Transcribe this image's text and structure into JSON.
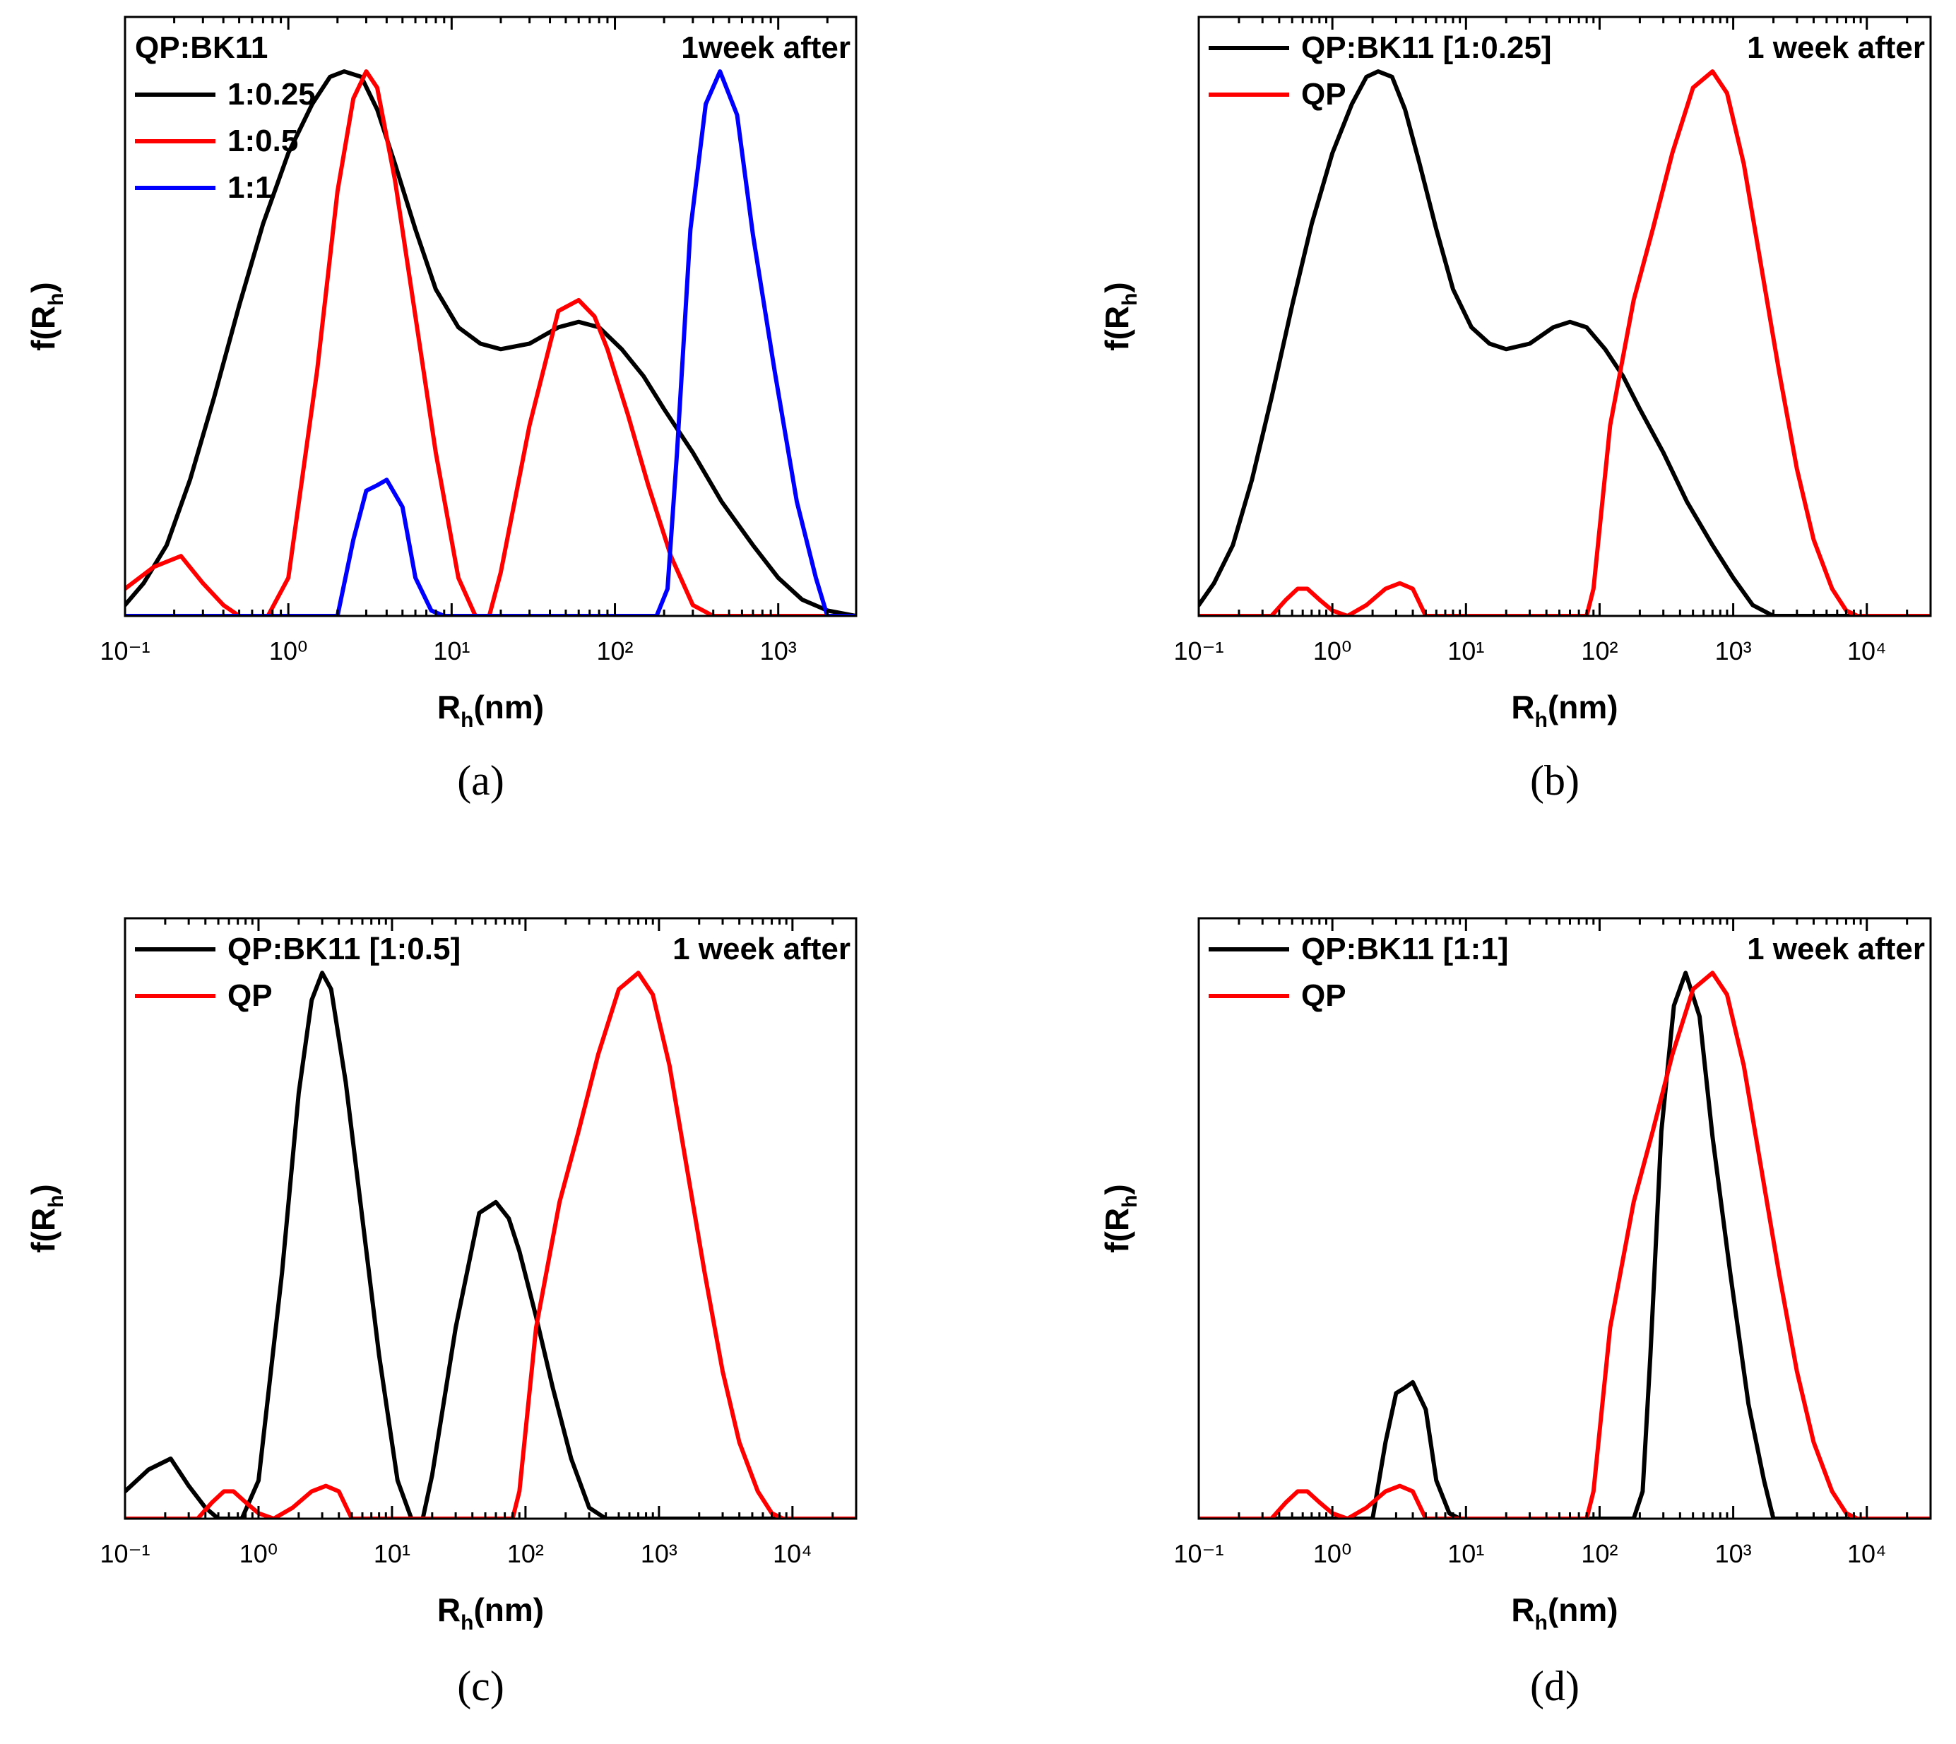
{
  "chart_data": [
    {
      "panel": "a",
      "caption": "(a)",
      "type": "line",
      "xscale": "log",
      "xlim": [
        0.1,
        3000
      ],
      "ylim": [
        0,
        1.1
      ],
      "xticks": [
        0.1,
        1,
        10,
        100,
        1000
      ],
      "xlabel": {
        "main": "R",
        "sub": "h",
        "rest": "(nm)"
      },
      "ylabel": {
        "main": "f(R",
        "sub": "h",
        "rest": ")"
      },
      "annotation": "1week after",
      "legend_title": "QP:BK11",
      "legend_position": "top-left",
      "series": [
        {
          "name": "1:0.25",
          "color": "#000000",
          "x": [
            0.1,
            0.13,
            0.18,
            0.25,
            0.35,
            0.5,
            0.7,
            1.0,
            1.4,
            1.8,
            2.2,
            2.8,
            3.5,
            4.5,
            6,
            8,
            11,
            15,
            20,
            30,
            45,
            60,
            80,
            110,
            150,
            200,
            300,
            450,
            700,
            1000,
            1400,
            2000,
            3000
          ],
          "y": [
            0.02,
            0.06,
            0.13,
            0.25,
            0.4,
            0.57,
            0.72,
            0.85,
            0.94,
            0.99,
            1.0,
            0.99,
            0.93,
            0.83,
            0.71,
            0.6,
            0.53,
            0.5,
            0.49,
            0.5,
            0.53,
            0.54,
            0.53,
            0.49,
            0.44,
            0.38,
            0.3,
            0.21,
            0.13,
            0.07,
            0.03,
            0.01,
            0.0
          ]
        },
        {
          "name": "1:0.5",
          "color": "#ff0000",
          "x": [
            0.1,
            0.15,
            0.22,
            0.3,
            0.4,
            0.5,
            0.6,
            0.75,
            1.0,
            1.5,
            2.0,
            2.5,
            3.0,
            3.5,
            4.5,
            6,
            8,
            11,
            14,
            17,
            20,
            30,
            45,
            60,
            75,
            90,
            120,
            160,
            220,
            300,
            400,
            3000
          ],
          "y": [
            0.05,
            0.09,
            0.11,
            0.06,
            0.02,
            0.0,
            0.0,
            0.0,
            0.07,
            0.45,
            0.78,
            0.95,
            1.0,
            0.97,
            0.8,
            0.55,
            0.3,
            0.07,
            0.0,
            0.0,
            0.08,
            0.35,
            0.56,
            0.58,
            0.55,
            0.49,
            0.37,
            0.24,
            0.11,
            0.02,
            0.0,
            0.0
          ]
        },
        {
          "name": "1:1",
          "color": "#0000ff",
          "x": [
            0.1,
            1.5,
            2.0,
            2.5,
            3.0,
            3.5,
            4.0,
            5.0,
            6.0,
            7.5,
            9.0,
            20,
            100,
            180,
            210,
            240,
            290,
            360,
            440,
            560,
            700,
            950,
            1300,
            1700,
            2000,
            3000
          ],
          "y": [
            0.0,
            0.0,
            0.0,
            0.14,
            0.23,
            0.24,
            0.25,
            0.2,
            0.07,
            0.01,
            0.0,
            0.0,
            0.0,
            0.0,
            0.05,
            0.3,
            0.71,
            0.94,
            1.0,
            0.92,
            0.7,
            0.45,
            0.21,
            0.07,
            0.0,
            0.0
          ]
        }
      ]
    },
    {
      "panel": "b",
      "caption": "(b)",
      "type": "line",
      "xscale": "log",
      "xlim": [
        0.1,
        30000
      ],
      "ylim": [
        0,
        1.1
      ],
      "xticks": [
        0.1,
        1,
        10,
        100,
        1000,
        10000
      ],
      "xlabel": {
        "main": "R",
        "sub": "h",
        "rest": "(nm)"
      },
      "ylabel": {
        "main": "f(R",
        "sub": "h",
        "rest": ")"
      },
      "annotation": "1 week after",
      "legend_title": "",
      "legend_position": "top-left",
      "series": [
        {
          "name": "QP:BK11 [1:0.25]",
          "color": "#000000",
          "x": [
            0.1,
            0.13,
            0.18,
            0.25,
            0.35,
            0.5,
            0.7,
            1.0,
            1.4,
            1.8,
            2.2,
            2.8,
            3.5,
            4.5,
            6,
            8,
            11,
            15,
            20,
            30,
            45,
            60,
            80,
            110,
            150,
            200,
            300,
            450,
            700,
            1000,
            1400,
            2000,
            30000
          ],
          "y": [
            0.02,
            0.06,
            0.13,
            0.25,
            0.4,
            0.57,
            0.72,
            0.85,
            0.94,
            0.99,
            1.0,
            0.99,
            0.93,
            0.83,
            0.71,
            0.6,
            0.53,
            0.5,
            0.49,
            0.5,
            0.53,
            0.54,
            0.53,
            0.49,
            0.44,
            0.38,
            0.3,
            0.21,
            0.13,
            0.07,
            0.02,
            0.0,
            0.0
          ]
        },
        {
          "name": "QP",
          "color": "#ff0000",
          "x": [
            0.1,
            0.35,
            0.45,
            0.55,
            0.65,
            0.8,
            1.0,
            1.3,
            1.8,
            2.5,
            3.2,
            4.0,
            5.0,
            6.0,
            20,
            80,
            90,
            120,
            180,
            250,
            350,
            500,
            700,
            900,
            1200,
            1600,
            2200,
            3000,
            4000,
            5500,
            7000,
            8500,
            30000
          ],
          "y": [
            0.0,
            0.0,
            0.03,
            0.05,
            0.05,
            0.03,
            0.01,
            0.0,
            0.02,
            0.05,
            0.06,
            0.05,
            0.0,
            0.0,
            0.0,
            0.0,
            0.05,
            0.35,
            0.58,
            0.71,
            0.85,
            0.97,
            1.0,
            0.96,
            0.83,
            0.65,
            0.45,
            0.27,
            0.14,
            0.05,
            0.01,
            0.0,
            0.0
          ]
        }
      ]
    },
    {
      "panel": "c",
      "caption": "(c)",
      "type": "line",
      "xscale": "log",
      "xlim": [
        0.1,
        30000
      ],
      "ylim": [
        0,
        1.1
      ],
      "xticks": [
        0.1,
        1,
        10,
        100,
        1000,
        10000
      ],
      "xlabel": {
        "main": "R",
        "sub": "h",
        "rest": "(nm)"
      },
      "ylabel": {
        "main": "f(R",
        "sub": "h",
        "rest": ")"
      },
      "annotation": "1 week after",
      "legend_title": "",
      "legend_position": "top-left",
      "series": [
        {
          "name": "QP:BK11 [1:0.5]",
          "color": "#000000",
          "x": [
            0.1,
            0.15,
            0.22,
            0.3,
            0.4,
            0.5,
            0.6,
            0.75,
            1.0,
            1.5,
            2.0,
            2.5,
            3.0,
            3.5,
            4.5,
            6,
            8,
            11,
            14,
            17,
            20,
            30,
            45,
            60,
            75,
            90,
            120,
            160,
            220,
            300,
            400,
            30000
          ],
          "y": [
            0.05,
            0.09,
            0.11,
            0.06,
            0.02,
            0.0,
            0.0,
            0.0,
            0.07,
            0.45,
            0.78,
            0.95,
            1.0,
            0.97,
            0.8,
            0.55,
            0.3,
            0.07,
            0.0,
            0.0,
            0.08,
            0.35,
            0.56,
            0.58,
            0.55,
            0.49,
            0.37,
            0.24,
            0.11,
            0.02,
            0.0,
            0.0
          ]
        },
        {
          "name": "QP",
          "color": "#ff0000",
          "x": [
            0.1,
            0.35,
            0.45,
            0.55,
            0.65,
            0.8,
            1.0,
            1.3,
            1.8,
            2.5,
            3.2,
            4.0,
            5.0,
            6.0,
            20,
            80,
            90,
            120,
            180,
            250,
            350,
            500,
            700,
            900,
            1200,
            1600,
            2200,
            3000,
            4000,
            5500,
            7000,
            8500,
            30000
          ],
          "y": [
            0.0,
            0.0,
            0.03,
            0.05,
            0.05,
            0.03,
            0.01,
            0.0,
            0.02,
            0.05,
            0.06,
            0.05,
            0.0,
            0.0,
            0.0,
            0.0,
            0.05,
            0.35,
            0.58,
            0.71,
            0.85,
            0.97,
            1.0,
            0.96,
            0.83,
            0.65,
            0.45,
            0.27,
            0.14,
            0.05,
            0.01,
            0.0,
            0.0
          ]
        }
      ]
    },
    {
      "panel": "d",
      "caption": "(d)",
      "type": "line",
      "xscale": "log",
      "xlim": [
        0.1,
        30000
      ],
      "ylim": [
        0,
        1.1
      ],
      "xticks": [
        0.1,
        1,
        10,
        100,
        1000,
        10000
      ],
      "xlabel": {
        "main": "R",
        "sub": "h",
        "rest": "(nm)"
      },
      "ylabel": {
        "main": "f(R",
        "sub": "h",
        "rest": ")"
      },
      "annotation": "1 week after",
      "legend_title": "",
      "legend_position": "top-left",
      "series": [
        {
          "name": "QP:BK11 [1:1]",
          "color": "#000000",
          "x": [
            0.1,
            1.5,
            2.0,
            2.5,
            3.0,
            3.5,
            4.0,
            5.0,
            6.0,
            7.5,
            9.0,
            20,
            100,
            180,
            210,
            240,
            290,
            360,
            440,
            560,
            700,
            950,
            1300,
            1700,
            2000,
            30000
          ],
          "y": [
            0.0,
            0.0,
            0.0,
            0.14,
            0.23,
            0.24,
            0.25,
            0.2,
            0.07,
            0.01,
            0.0,
            0.0,
            0.0,
            0.0,
            0.05,
            0.3,
            0.71,
            0.94,
            1.0,
            0.92,
            0.7,
            0.45,
            0.21,
            0.07,
            0.0,
            0.0
          ]
        },
        {
          "name": "QP",
          "color": "#ff0000",
          "x": [
            0.1,
            0.35,
            0.45,
            0.55,
            0.65,
            0.8,
            1.0,
            1.3,
            1.8,
            2.5,
            3.2,
            4.0,
            5.0,
            6.0,
            20,
            80,
            90,
            120,
            180,
            250,
            350,
            500,
            700,
            900,
            1200,
            1600,
            2200,
            3000,
            4000,
            5500,
            7000,
            8500,
            30000
          ],
          "y": [
            0.0,
            0.0,
            0.03,
            0.05,
            0.05,
            0.03,
            0.01,
            0.0,
            0.02,
            0.05,
            0.06,
            0.05,
            0.0,
            0.0,
            0.0,
            0.0,
            0.05,
            0.35,
            0.58,
            0.71,
            0.85,
            0.97,
            1.0,
            0.96,
            0.83,
            0.65,
            0.45,
            0.27,
            0.14,
            0.05,
            0.01,
            0.0,
            0.0
          ]
        }
      ]
    }
  ]
}
